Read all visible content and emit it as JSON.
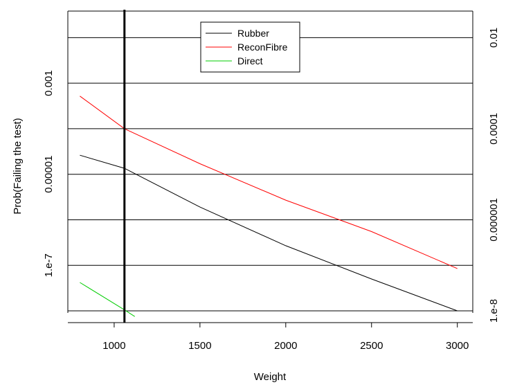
{
  "chart_data": {
    "type": "line",
    "title": "",
    "xlabel": "Weight",
    "ylabel": "Prob(Failing the test)",
    "xlim": [
      730,
      3090
    ],
    "log_y": true,
    "ylim": [
      1e-08,
      0.03
    ],
    "xticks": [
      1000,
      1500,
      2000,
      2500,
      3000
    ],
    "yticks_left": [
      {
        "value": 0.001,
        "label": "0.001"
      },
      {
        "value": 1e-05,
        "label": "0.00001"
      },
      {
        "value": 1e-07,
        "label": "1.e-7"
      }
    ],
    "yticks_right": [
      {
        "value": 0.01,
        "label": "0.01"
      },
      {
        "value": 0.0001,
        "label": "0.0001"
      },
      {
        "value": 1e-06,
        "label": "0.000001"
      },
      {
        "value": 1e-08,
        "label": "1.e-8"
      }
    ],
    "horizontal_gridlines": [
      0.01,
      0.001,
      0.0001,
      1e-05,
      1e-06,
      1e-07,
      1e-08
    ],
    "vertical_reference_line": 1060,
    "legend_position": "top-center",
    "series": [
      {
        "name": "Rubber",
        "color": "#000000",
        "x": [
          800,
          1060,
          1500,
          2000,
          2500,
          3000
        ],
        "y": [
          2.62e-05,
          1.35e-05,
          1.9e-06,
          2.7e-07,
          5e-08,
          1e-08
        ]
      },
      {
        "name": "ReconFibre",
        "color": "#ff0000",
        "x": [
          800,
          1060,
          1500,
          2000,
          2500,
          3000
        ],
        "y": [
          0.00052,
          0.0001,
          1.7e-05,
          2.7e-06,
          5.5e-07,
          8.5e-08
        ]
      },
      {
        "name": "Direct",
        "color": "#00cc00",
        "x": [
          800,
          1060,
          1120
        ],
        "y": [
          4.2e-08,
          1.05e-08,
          7.5e-09
        ]
      }
    ]
  }
}
